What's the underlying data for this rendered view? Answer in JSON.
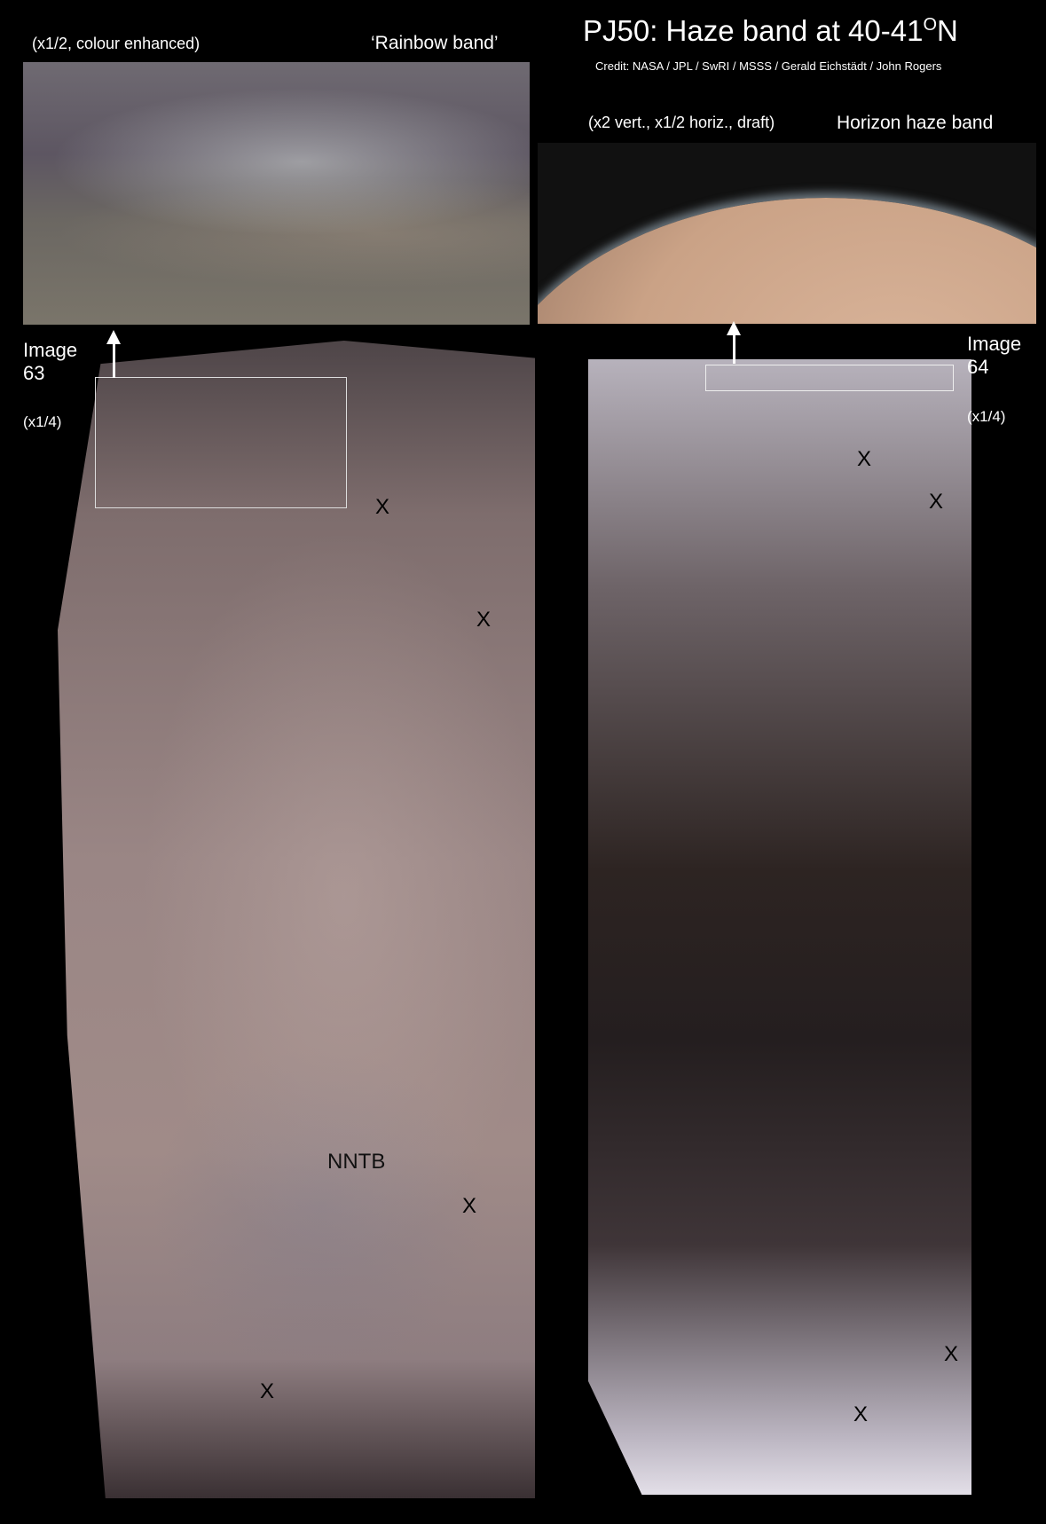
{
  "title": "PJ50:  Haze band at 40-41",
  "title_sup": "O",
  "title_tail": "N",
  "credit": "Credit: NASA / JPL / SwRI / MSSS / Gerald Eichstädt / John Rogers",
  "inset_left": {
    "scale_label": "(x1/2,  colour enhanced)",
    "name_label": "‘Rainbow band’"
  },
  "inset_right": {
    "scale_label": "(x2 vert., x1/2 horiz., draft)",
    "name_label": "Horizon haze band"
  },
  "image63": {
    "label_line1": "Image",
    "label_line2": "63",
    "scale": "(x1/4)"
  },
  "image64": {
    "label_line1": "Image",
    "label_line2": "64",
    "scale": "(x1/4)"
  },
  "markers63": [
    "X",
    "X",
    "X",
    "X"
  ],
  "markers64": [
    "X",
    "X",
    "X",
    "X"
  ],
  "feature_label": "NNTB"
}
